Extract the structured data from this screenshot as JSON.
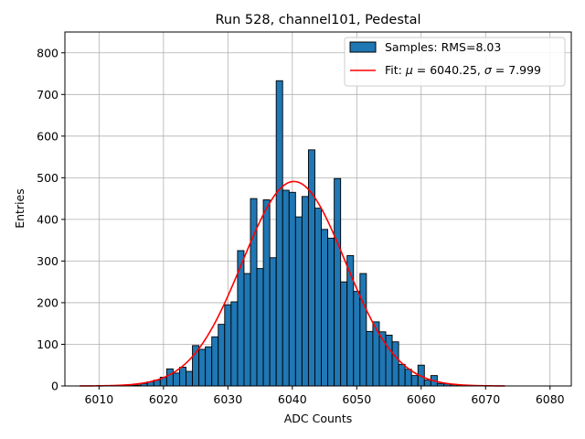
{
  "chart_data": {
    "type": "bar",
    "title": "Run 528, channel101, Pedestal",
    "xlabel": "ADC Counts",
    "ylabel": "Entries",
    "xlim": [
      6004.7,
      6083.3
    ],
    "ylim": [
      0,
      850
    ],
    "xticks": [
      6010,
      6020,
      6030,
      6040,
      6050,
      6060,
      6070,
      6080
    ],
    "yticks": [
      0,
      100,
      200,
      300,
      400,
      500,
      600,
      700,
      800
    ],
    "grid": true,
    "legend_position": "top-right",
    "bin_width": 1,
    "bins_x": [
      6007,
      6008,
      6009,
      6010,
      6011,
      6012,
      6013,
      6014,
      6015,
      6016,
      6017,
      6018,
      6019,
      6020,
      6021,
      6022,
      6023,
      6024,
      6025,
      6026,
      6027,
      6028,
      6029,
      6030,
      6031,
      6032,
      6033,
      6034,
      6035,
      6036,
      6037,
      6038,
      6039,
      6040,
      6041,
      6042,
      6043,
      6044,
      6045,
      6046,
      6047,
      6048,
      6049,
      6050,
      6051,
      6052,
      6053,
      6054,
      6055,
      6056,
      6057,
      6058,
      6059,
      6060,
      6061,
      6062,
      6063,
      6064,
      6065,
      6066,
      6067,
      6068,
      6069,
      6070,
      6071,
      6072,
      6073
    ],
    "bins_y": [
      0,
      0,
      0,
      0,
      0,
      0,
      0,
      0,
      1,
      2,
      6,
      10,
      14,
      21,
      41,
      31,
      45,
      35,
      97,
      88,
      94,
      118,
      148,
      195,
      202,
      325,
      270,
      450,
      282,
      447,
      308,
      733,
      470,
      465,
      406,
      455,
      567,
      427,
      376,
      355,
      498,
      250,
      313,
      227,
      270,
      131,
      154,
      130,
      122,
      106,
      52,
      40,
      25,
      50,
      14,
      25,
      6,
      5,
      3,
      1,
      0,
      0,
      0,
      0,
      0,
      0,
      0
    ],
    "bar_color": "#1f77b4",
    "bar_edge_color": "#000000",
    "fit": {
      "mu": 6040.25,
      "sigma": 7.999,
      "amplitude": 491,
      "x_range": [
        6007,
        6073
      ],
      "color": "#ff0000"
    },
    "legend": [
      {
        "label": "Samples: RMS=8.03",
        "kind": "patch",
        "color": "#1f77b4"
      },
      {
        "label_parts": [
          "Fit: ",
          "μ",
          " = 6040.25, ",
          "σ",
          " = 7.999"
        ],
        "kind": "line",
        "color": "#ff0000"
      }
    ]
  }
}
